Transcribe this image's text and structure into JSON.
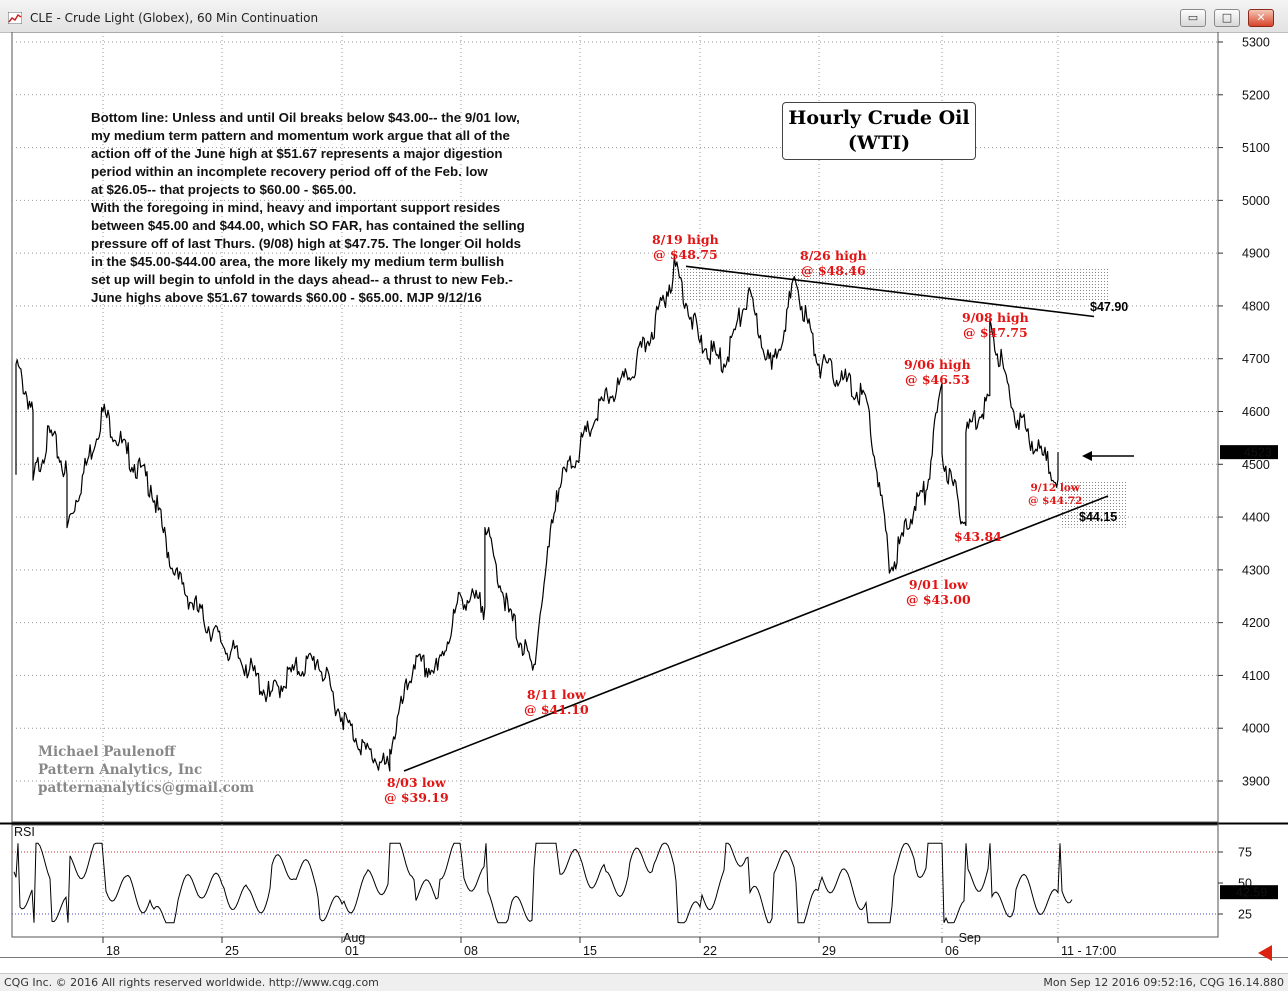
{
  "window": {
    "title": "CLE - Crude Light (Globex), 60 Min Continuation",
    "buttons": {
      "minimize": "▭",
      "maximize": "□",
      "close": "✕"
    }
  },
  "status": {
    "left": "CQG Inc. © 2016 All rights reserved worldwide. http://www.cqg.com",
    "right": "Mon Sep 12 2016 09:52:16, CQG 16.14.880"
  },
  "chart_title": {
    "line1": "Hourly Crude Oil",
    "line2": "(WTI)"
  },
  "commentary": "Bottom line: Unless and until Oil breaks below $43.00-- the 9/01 low,\nmy medium term pattern and momentum work argue that all of the\naction off of the June high at $51.67 represents a major digestion\nperiod within an incomplete recovery period off of the Feb. low\nat $26.05-- that projects to $60.00 - $65.00.\n   With the foregoing in mind, heavy and important support resides\nbetween $45.00 and $44.00, which SO FAR, has contained the selling\npressure off of last Thurs. (9/08) high at $47.75. The longer Oil holds\nin the $45.00-$44.00 area, the more likely my medium term bullish\nset up will begin to unfold in the days ahead-- a thrust to new Feb.-\nJune highs above $51.67 towards $60.00 - $65.00. MJP 9/12/16",
  "byline": [
    "Michael Paulenoff",
    "Pattern Analytics, Inc",
    "patternanalytics@gmail.com"
  ],
  "annotations": {
    "aug19": {
      "line1": "8/19 high",
      "line2": "@ $48.75"
    },
    "aug26": {
      "line1": "8/26 high",
      "line2": "@ $48.46"
    },
    "sep08": {
      "line1": "9/08 high",
      "line2": "@ $47.75"
    },
    "sep06": {
      "line1": "9/06 high",
      "line2": "@ $46.53"
    },
    "aug11": {
      "line1": "8/11 low",
      "line2": "@ $41.10"
    },
    "aug03": {
      "line1": "8/03 low",
      "line2": "@ $39.19"
    },
    "sep01": {
      "line1": "9/01 low",
      "line2": "@ $43.00"
    },
    "sep12": {
      "line1": "9/12 low",
      "line2": "@ $44.72"
    },
    "low4384": "$43.84",
    "resist": "$47.90",
    "support": "$44.15"
  },
  "colors": {
    "price": "#000000",
    "annotation": "#e21414",
    "grid": "#999999",
    "rsi_ref": "#c83232",
    "rsi_low_ref": "#4a4ac8",
    "last_price_bg": "#000000"
  },
  "chart_data": [
    {
      "type": "line",
      "title": "Hourly Crude Oil (WTI)",
      "y_ticks": [
        3900,
        4000,
        4100,
        4200,
        4300,
        4400,
        4500,
        4600,
        4700,
        4800,
        4900,
        5000,
        5100,
        5200,
        5300
      ],
      "y_tick_labels": [
        "3900",
        "4000",
        "4100",
        "4200",
        "4300",
        "4400",
        "4500",
        "4600",
        "4700",
        "4800",
        "4900",
        "5000",
        "5100",
        "5200",
        "5300"
      ],
      "ylim": [
        3820,
        5320
      ],
      "last_price": "4523",
      "x_ticks": [
        "18",
        "25",
        "01",
        "08",
        "15",
        "22",
        "29",
        "06",
        "11 - 17:00"
      ],
      "x_month_labels": [
        "Aug",
        "Sep"
      ],
      "series": [
        {
          "name": "",
          "points": [
            [
              "07-12",
              4480
            ],
            [
              "07-12",
              4690
            ],
            [
              "07-13",
              4600
            ],
            [
              "07-13",
              4470
            ],
            [
              "07-14",
              4560
            ],
            [
              "07-15",
              4480
            ],
            [
              "07-15",
              4380
            ],
            [
              "07-18",
              4600
            ],
            [
              "07-19",
              4520
            ],
            [
              "07-20",
              4460
            ],
            [
              "07-21",
              4290
            ],
            [
              "07-22",
              4220
            ],
            [
              "07-25",
              4160
            ],
            [
              "07-26",
              4120
            ],
            [
              "07-27",
              4060
            ],
            [
              "07-28",
              4110
            ],
            [
              "07-29",
              4130
            ],
            [
              "08-01",
              4020
            ],
            [
              "08-02",
              3960
            ],
            [
              "08-03",
              3919
            ],
            [
              "08-03",
              3960
            ],
            [
              "08-04",
              4120
            ],
            [
              "08-05",
              4110
            ],
            [
              "08-08",
              4250
            ],
            [
              "08-09",
              4230
            ],
            [
              "08-09",
              4380
            ],
            [
              "08-10",
              4220
            ],
            [
              "08-11",
              4110
            ],
            [
              "08-12",
              4450
            ],
            [
              "08-15",
              4530
            ],
            [
              "08-16",
              4620
            ],
            [
              "08-17",
              4660
            ],
            [
              "08-18",
              4750
            ],
            [
              "08-19",
              4875
            ],
            [
              "08-22",
              4730
            ],
            [
              "08-23",
              4690
            ],
            [
              "08-24",
              4820
            ],
            [
              "08-25",
              4680
            ],
            [
              "08-26",
              4846
            ],
            [
              "08-29",
              4690
            ],
            [
              "08-30",
              4660
            ],
            [
              "08-31",
              4620
            ],
            [
              "09-01",
              4300
            ],
            [
              "09-02",
              4420
            ],
            [
              "09-05",
              4450
            ],
            [
              "09-06",
              4653
            ],
            [
              "09-06",
              4520
            ],
            [
              "09-07",
              4384
            ],
            [
              "09-07",
              4560
            ],
            [
              "09-08",
              4630
            ],
            [
              "09-08",
              4775
            ],
            [
              "09-09",
              4600
            ],
            [
              "09-12",
              4472
            ],
            [
              "09-12",
              4523
            ]
          ]
        }
      ],
      "annotations": [
        "8/19 high @ $48.75",
        "8/26 high @ $48.46",
        "9/08 high @ $47.75",
        "9/06 high @ $46.53",
        "8/11 low @ $41.10",
        "8/03 low @ $39.19",
        "9/01 low @ $43.00",
        "9/12 low @ $44.72",
        "$43.84",
        "$47.90",
        "$44.15"
      ],
      "trendlines": [
        {
          "kind": "resistance",
          "from": [
            "08-19",
            4875
          ],
          "to": [
            "09-12",
            4780
          ],
          "label": "$47.90"
        },
        {
          "kind": "support",
          "from": [
            "08-03",
            3919
          ],
          "to": [
            "09-12",
            4440
          ],
          "label": "$44.15"
        }
      ],
      "shaded_zones": [
        [
          4810,
          4870
        ],
        [
          4380,
          4470
        ]
      ]
    },
    {
      "type": "line",
      "title": "RSI",
      "y_ticks": [
        25,
        50,
        75
      ],
      "y_tick_labels": [
        "25",
        "50",
        "75"
      ],
      "ylim": [
        10,
        90
      ],
      "reference_lines": [
        75,
        25
      ],
      "last_value": "42.59"
    }
  ]
}
